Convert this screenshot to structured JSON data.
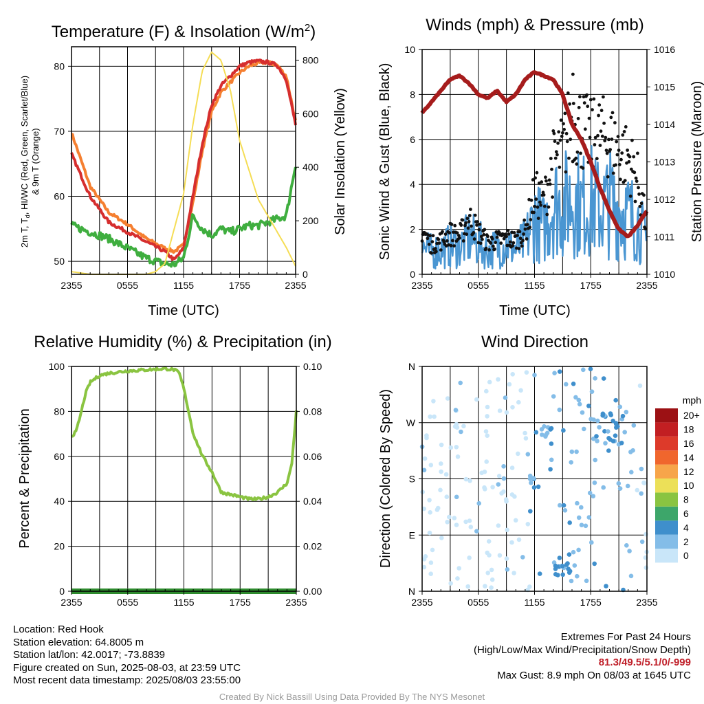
{
  "panels": {
    "temp": {
      "title_text": "Temperature (F) & Insolation (W/m",
      "title_sup": "2",
      "title_end": ")",
      "xlabel": "Time (UTC)",
      "ylabel_line1": "2m T, T",
      "ylabel_sub": "d",
      "ylabel_line1_end": ", HI/WC (Red, Green, Scarlet/Blue)",
      "ylabel_line2": "& 9m T (Orange)",
      "ylabel_right": "Solar Insolation (Yellow)"
    },
    "wind": {
      "title": "Winds (mph) & Pressure (mb)",
      "xlabel": "Time (UTC)",
      "ylabel_left": "Sonic Wind & Gust (Blue, Black)",
      "ylabel_right": "Station Pressure (Maroon)"
    },
    "rh": {
      "title": "Relative Humidity (%) & Precipitation (in)",
      "ylabel_left": "Percent & Precipitation"
    },
    "dir": {
      "title": "Wind Direction",
      "ylabel_left": "Direction (Colored By Speed)"
    }
  },
  "chart_data": [
    {
      "id": "temp",
      "type": "line",
      "x_ticks": [
        "2355",
        "0555",
        "1155",
        "1755",
        "2355"
      ],
      "ylim": [
        48,
        83
      ],
      "y_ticks": [
        50,
        60,
        70,
        80
      ],
      "y2lim": [
        0,
        850
      ],
      "y2_ticks": [
        0,
        200,
        400,
        600,
        800
      ],
      "x": [
        0,
        2,
        4,
        6,
        8,
        10,
        11,
        12,
        13,
        14,
        15,
        16,
        17,
        18,
        19,
        20,
        21,
        22,
        23,
        24
      ],
      "series": [
        {
          "values": [
            69.8,
            61.5,
            57.5,
            55.7,
            53.5,
            52.0,
            51.5,
            52.5,
            59.0,
            67.0,
            73.0,
            76.0,
            77.5,
            79.0,
            80.0,
            80.5,
            80.6,
            80.2,
            78.5,
            71.5
          ],
          "color": "#f57f30",
          "axis": "left"
        },
        {
          "values": [
            66.5,
            60.0,
            56.0,
            54.5,
            53.0,
            51.5,
            50.2,
            52.0,
            60.0,
            68.0,
            74.0,
            77.0,
            78.5,
            80.0,
            80.6,
            80.8,
            80.6,
            80.2,
            78.0,
            71.0
          ],
          "color": "#d62e2e",
          "axis": "left"
        },
        {
          "values": [
            55.5,
            54.5,
            53.5,
            52.0,
            50.5,
            49.6,
            49.5,
            50.5,
            57.0,
            55.0,
            54.0,
            55.0,
            54.5,
            55.0,
            55.5,
            55.5,
            56.0,
            56.5,
            57.0,
            65.0
          ],
          "color": "#3fae3f",
          "axis": "left"
        },
        {
          "values": [
            10,
            5,
            0,
            0,
            0,
            0,
            10,
            40,
            300,
            560,
            760,
            830,
            800,
            690,
            500,
            280,
            100,
            30
          ],
          "x": [
            0,
            1,
            2,
            4,
            6,
            8,
            9,
            10,
            12,
            13,
            14,
            15,
            16,
            17,
            18,
            20,
            23,
            24
          ],
          "color": "#f5dd55",
          "axis": "right"
        }
      ]
    },
    {
      "id": "wind",
      "type": "line",
      "x_ticks": [
        "2355",
        "0555",
        "1155",
        "1755",
        "2355"
      ],
      "ylim": [
        0,
        10
      ],
      "y_ticks": [
        0,
        2,
        4,
        6,
        8,
        10
      ],
      "y2lim": [
        1010,
        1016
      ],
      "y2_ticks": [
        1010,
        1011,
        1012,
        1013,
        1014,
        1015,
        1016
      ],
      "x": [
        0,
        1,
        2,
        3,
        4,
        5,
        6,
        7,
        8,
        9,
        10,
        11,
        12,
        13,
        14,
        15,
        16,
        17,
        18,
        19,
        20,
        21,
        22,
        23,
        24
      ],
      "series": [
        {
          "values": [
            1.2,
            1.0,
            1.1,
            1.3,
            1.2,
            1.6,
            1.4,
            1.0,
            1.2,
            1.3,
            1.1,
            1.4,
            2.5,
            2.0,
            3.2,
            3.0,
            3.4,
            3.0,
            3.3,
            2.8,
            3.2,
            2.9,
            2.6,
            2.4,
            1.3
          ],
          "color": "#4a96d2",
          "axis": "left"
        },
        {
          "values": [
            1014.3,
            1014.6,
            1014.9,
            1015.2,
            1015.3,
            1015.1,
            1014.8,
            1014.7,
            1014.9,
            1014.6,
            1014.8,
            1015.2,
            1015.4,
            1015.3,
            1015.2,
            1014.8,
            1014.0,
            1013.6,
            1013.0,
            1012.3,
            1011.7,
            1011.2,
            1011.0,
            1011.3,
            1011.7
          ],
          "color": "#a61c1c",
          "axis": "right"
        }
      ],
      "gust": {
        "values": [
          2.0,
          1.3,
          1.5,
          1.8,
          1.7,
          2.5,
          1.9,
          1.4,
          1.5,
          1.6,
          1.5,
          1.9,
          3.6,
          3.2,
          5.0,
          5.5,
          7.0,
          6.5,
          6.0,
          6.2,
          6.0,
          5.5,
          5.2,
          4.2,
          2.0
        ],
        "max_x": 16.1,
        "max_value": 8.9,
        "color": "#111111"
      }
    },
    {
      "id": "rh",
      "type": "line",
      "x_ticks": [
        "2355",
        "0555",
        "1155",
        "1755",
        "2355"
      ],
      "ylim": [
        0,
        100
      ],
      "y_ticks": [
        0,
        20,
        40,
        60,
        80,
        100
      ],
      "y2lim": [
        0,
        0.1
      ],
      "y2_ticks": [
        "0.00",
        "0.02",
        "0.04",
        "0.06",
        "0.08",
        "0.10"
      ],
      "x": [
        0,
        0.5,
        1,
        1.5,
        2,
        3,
        4,
        6,
        8,
        10,
        11,
        11.5,
        12,
        13,
        14,
        15,
        16,
        17,
        18,
        19,
        20,
        21,
        22,
        22.5,
        23,
        23.5,
        24
      ],
      "series": [
        {
          "name": "RH",
          "values": [
            69,
            71,
            79,
            88,
            93,
            96,
            97,
            98,
            98.5,
            99,
            98.5,
            97,
            90,
            70,
            60,
            53,
            44,
            43,
            42,
            41,
            41,
            42,
            44,
            46,
            48,
            56,
            80
          ],
          "color": "#8ac441",
          "axis": "left"
        },
        {
          "name": "Precip",
          "values": [
            0,
            0
          ],
          "x": [
            0,
            24
          ],
          "color": "#2e8b2e",
          "axis": "right"
        }
      ]
    },
    {
      "id": "dir",
      "type": "scatter",
      "x_ticks": [
        "2355",
        "0555",
        "1155",
        "1755",
        "2355"
      ],
      "y_ticks": [
        "N",
        "E",
        "S",
        "W",
        "N"
      ],
      "ylim": [
        0,
        360
      ],
      "colorbar": {
        "title": "mph",
        "labels": [
          "0",
          "2",
          "4",
          "6",
          "8",
          "10",
          "12",
          "14",
          "16",
          "18",
          "20+"
        ],
        "colors": [
          "#c9e6f9",
          "#84bde8",
          "#3f8fcc",
          "#3da66a",
          "#8ac441",
          "#ece058",
          "#f7a54a",
          "#f0662d",
          "#dd3a2a",
          "#c21f22",
          "#9c1114"
        ]
      },
      "speed_by_hour": [
        1.2,
        1.0,
        1.1,
        1.3,
        1.2,
        1.6,
        1.4,
        1.0,
        1.2,
        1.3,
        1.1,
        1.4,
        2.5,
        2.0,
        3.2,
        3.0,
        3.4,
        3.0,
        3.3,
        2.8,
        3.2,
        2.9,
        2.6,
        2.4,
        1.3
      ],
      "clusters": [
        {
          "x": [
            12.5,
            13.8
          ],
          "dir": [
            235,
            265
          ]
        },
        {
          "x": [
            14.2,
            15.8
          ],
          "dir": [
            20,
            60
          ]
        },
        {
          "x": [
            18.5,
            21.5
          ],
          "dir": [
            235,
            285
          ]
        },
        {
          "x": [
            11.5,
            12.5
          ],
          "dir": [
            150,
            185
          ]
        }
      ]
    }
  ],
  "info": {
    "location": "Location: Red Hook",
    "elevation": "Station elevation: 64.8005 m",
    "latlon": "Station lat/lon: 42.0017; -73.8839",
    "created": "Figure created on Sun, 2025-08-03, at 23:59 UTC",
    "recent": "Most recent data timestamp: 2025/08/03 23:55:00"
  },
  "extremes": {
    "title": "Extremes For Past 24 Hours",
    "subtitle": "(High/Low/Max Wind/Precipitation/Snow Depth)",
    "values": "81.3/49.5/5.1/0/-999",
    "gust": "Max Gust: 8.9 mph On 08/03 at 1645 UTC"
  },
  "credit": "Created By Nick Bassill Using Data Provided By The NYS Mesonet"
}
